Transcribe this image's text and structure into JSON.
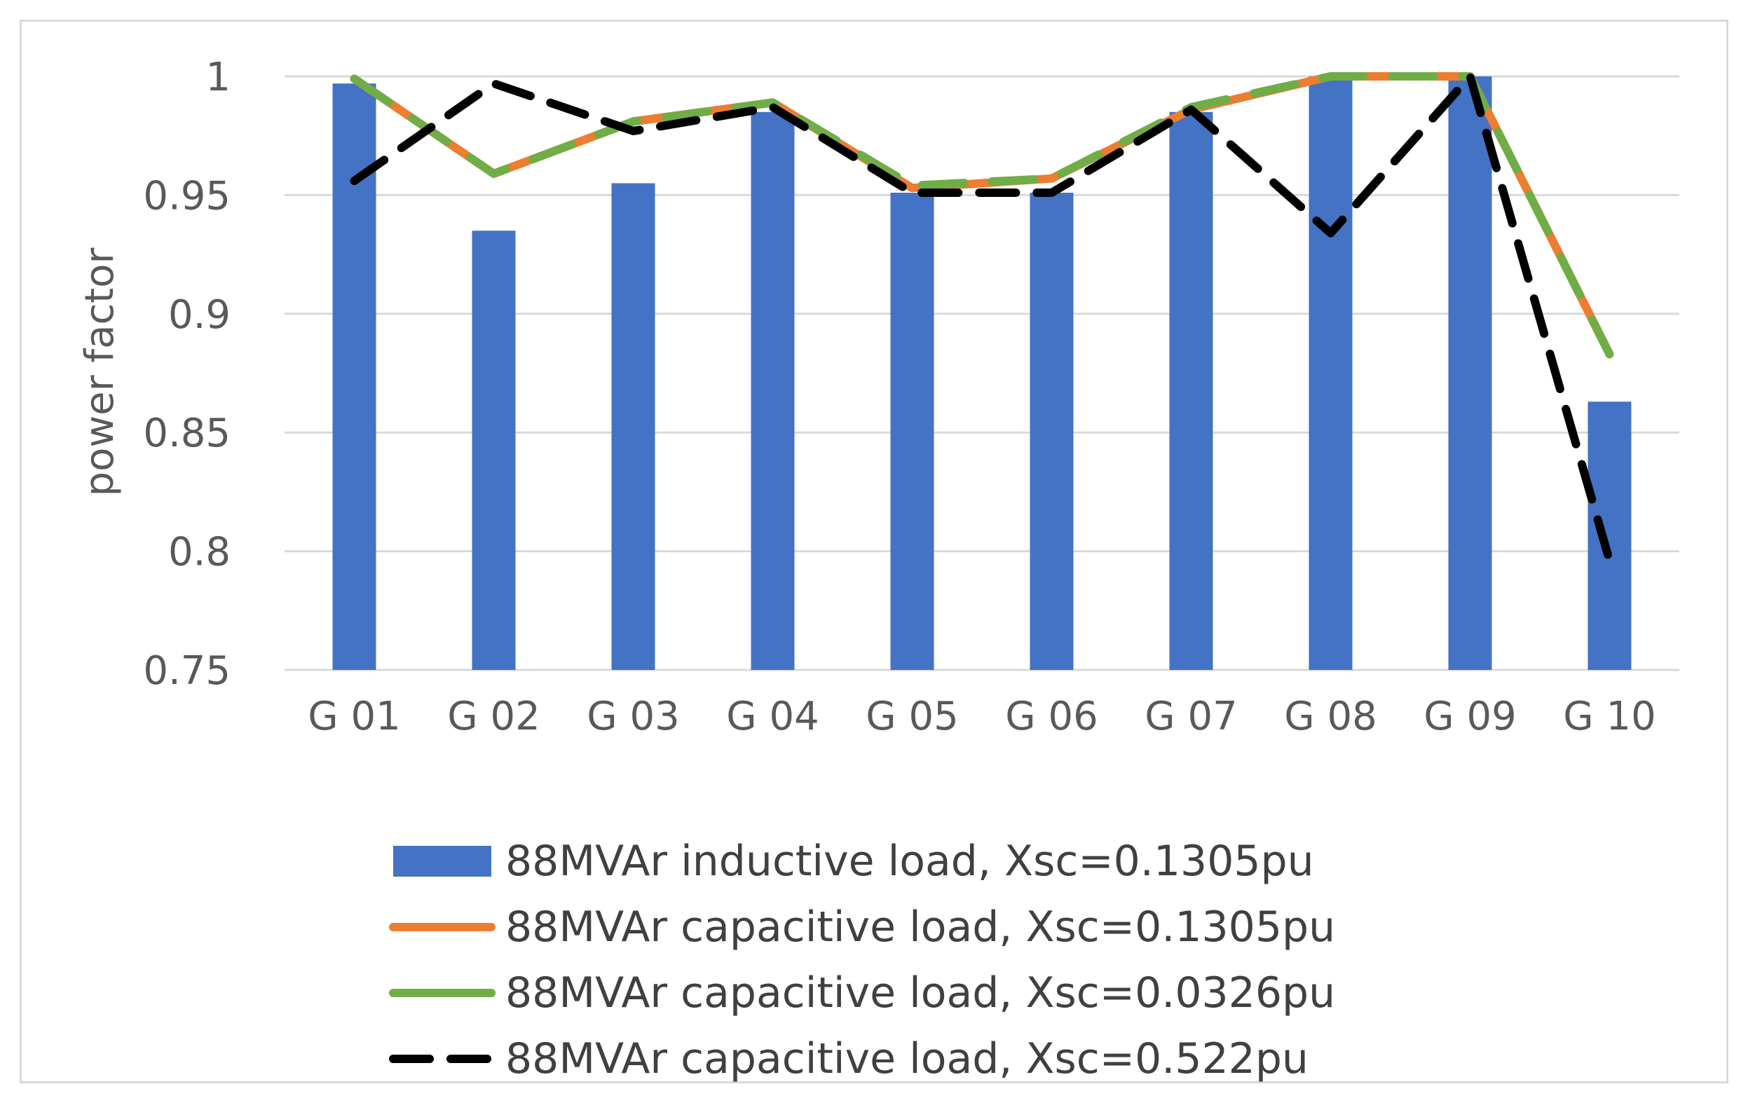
{
  "chart_data": {
    "type": "bar",
    "title": "",
    "xlabel": "",
    "ylabel": "power factor",
    "ylim": [
      0.75,
      1.0
    ],
    "yticks": [
      0.75,
      0.8,
      0.85,
      0.9,
      0.95,
      1
    ],
    "ytick_labels": [
      "0.75",
      "0.8",
      "0.85",
      "0.9",
      "0.95",
      "1"
    ],
    "categories": [
      "G 01",
      "G 02",
      "G 03",
      "G 04",
      "G 05",
      "G 06",
      "G 07",
      "G 08",
      "G 09",
      "G 10"
    ],
    "grid": true,
    "legend_position": "bottom",
    "series": [
      {
        "name": "88MVAr inductive load, Xsc=0.1305pu",
        "kind": "bar",
        "color": "#4472c4",
        "values": [
          0.997,
          0.935,
          0.955,
          0.985,
          0.951,
          0.951,
          0.985,
          1.0,
          1.0,
          0.863
        ]
      },
      {
        "name": "88MVAr capacitive load, Xsc=0.1305pu",
        "kind": "line",
        "color": "#ed7d31",
        "dash": "solid",
        "values": [
          0.999,
          0.959,
          0.981,
          0.989,
          0.953,
          0.957,
          0.986,
          1.0,
          1.0,
          0.883
        ]
      },
      {
        "name": "88MVAr capacitive load, Xsc=0.0326pu",
        "kind": "line",
        "color": "#70ad47",
        "dash": "dash",
        "values": [
          0.999,
          0.959,
          0.981,
          0.989,
          0.954,
          0.957,
          0.987,
          1.0,
          1.0,
          0.883
        ]
      },
      {
        "name": "88MVAr capacitive load, Xsc=0.522pu",
        "kind": "line",
        "color": "#000000",
        "dash": "longdash",
        "values": [
          0.956,
          0.997,
          0.977,
          0.987,
          0.951,
          0.951,
          0.986,
          0.934,
          1.0,
          0.796
        ]
      }
    ]
  }
}
